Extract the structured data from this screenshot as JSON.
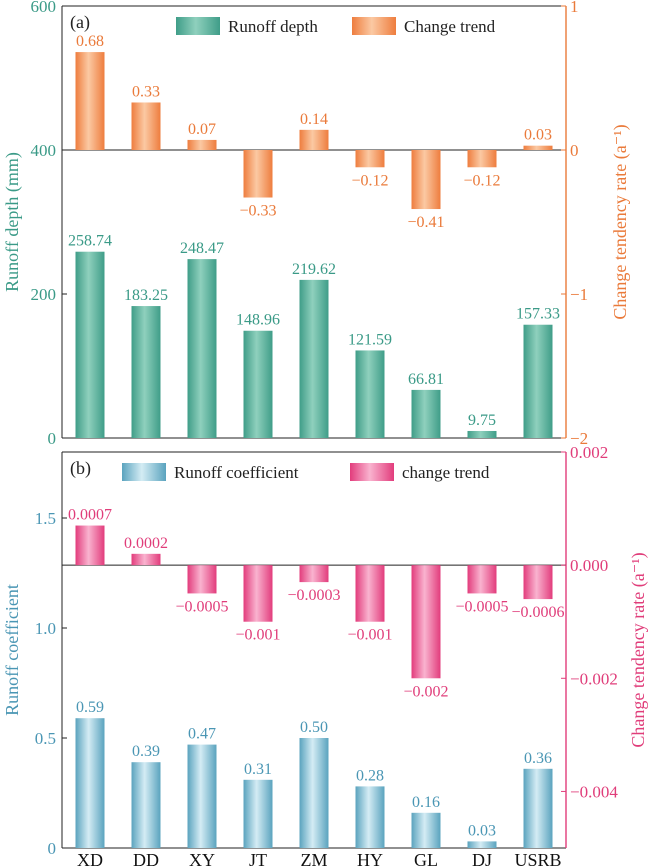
{
  "chart_data": [
    {
      "type": "bar",
      "panel_label": "(a)",
      "categories": [
        "XD",
        "DD",
        "XY",
        "JT",
        "ZM",
        "HY",
        "GL",
        "DJ",
        "USRB"
      ],
      "series": [
        {
          "name": "Runoff depth",
          "axis": "left",
          "color": "#5fb5a0",
          "values": [
            258.74,
            183.25,
            248.47,
            148.96,
            219.62,
            121.59,
            66.81,
            9.75,
            157.33
          ],
          "labels": [
            "258.74",
            "183.25",
            "248.47",
            "148.96",
            "219.62",
            "121.59",
            "66.81",
            "9.75",
            "157.33"
          ]
        },
        {
          "name": "Change trend",
          "axis": "right",
          "color": "#f08a4b",
          "values": [
            0.68,
            0.33,
            0.07,
            -0.33,
            0.14,
            -0.12,
            -0.41,
            -0.12,
            0.03
          ],
          "labels": [
            "0.68",
            "0.33",
            "0.07",
            "−0.33",
            "0.14",
            "−0.12",
            "−0.41",
            "−0.12",
            "0.03"
          ]
        }
      ],
      "ylabel": "Runoff depth (mm)",
      "ylim": [
        0,
        600
      ],
      "yticks": [
        "0",
        "200",
        "400",
        "600"
      ],
      "ylabel_right": "Change tendency rate (a⁻¹)",
      "ylim_right": [
        -2,
        1
      ],
      "yticks_right": [
        "−2",
        "−1",
        "0",
        "1"
      ],
      "left_color": "#3a9a87",
      "right_color": "#ea7a3a",
      "legend_position": "top"
    },
    {
      "type": "bar",
      "panel_label": "(b)",
      "categories": [
        "XD",
        "DD",
        "XY",
        "JT",
        "ZM",
        "HY",
        "GL",
        "DJ",
        "USRB"
      ],
      "series": [
        {
          "name": "Runoff coefficient",
          "axis": "left",
          "color": "#86bfd3",
          "values": [
            0.59,
            0.39,
            0.47,
            0.31,
            0.5,
            0.28,
            0.16,
            0.03,
            0.36
          ],
          "labels": [
            "0.59",
            "0.39",
            "0.47",
            "0.31",
            "0.50",
            "0.28",
            "0.16",
            "0.03",
            "0.36"
          ]
        },
        {
          "name": "change trend",
          "axis": "right",
          "color": "#e8528a",
          "values": [
            0.0007,
            0.0002,
            -0.0005,
            -0.001,
            -0.0003,
            -0.001,
            -0.002,
            -0.0005,
            -0.0006
          ],
          "labels": [
            "0.0007",
            "0.0002",
            "−0.0005",
            "−0.001",
            "−0.0003",
            "−0.001",
            "−0.002",
            "−0.0005",
            "−0.0006"
          ]
        }
      ],
      "ylabel": "Runoff coefficient",
      "ylim": [
        0,
        1.8
      ],
      "yticks": [
        "0",
        "0.5",
        "1.0",
        "1.5"
      ],
      "yticks_values": [
        0,
        0.5,
        1.0,
        1.5
      ],
      "ylabel_right": "Change tendency rate (a⁻¹)",
      "ylim_right": [
        -0.005,
        0.002
      ],
      "yticks_right": [
        "−0.004",
        "−0.002",
        "0.000",
        "0.002"
      ],
      "yticks_right_values": [
        -0.004,
        -0.002,
        0,
        0.002
      ],
      "left_color": "#4a96b4",
      "right_color": "#e03d7a",
      "legend_position": "top"
    }
  ]
}
